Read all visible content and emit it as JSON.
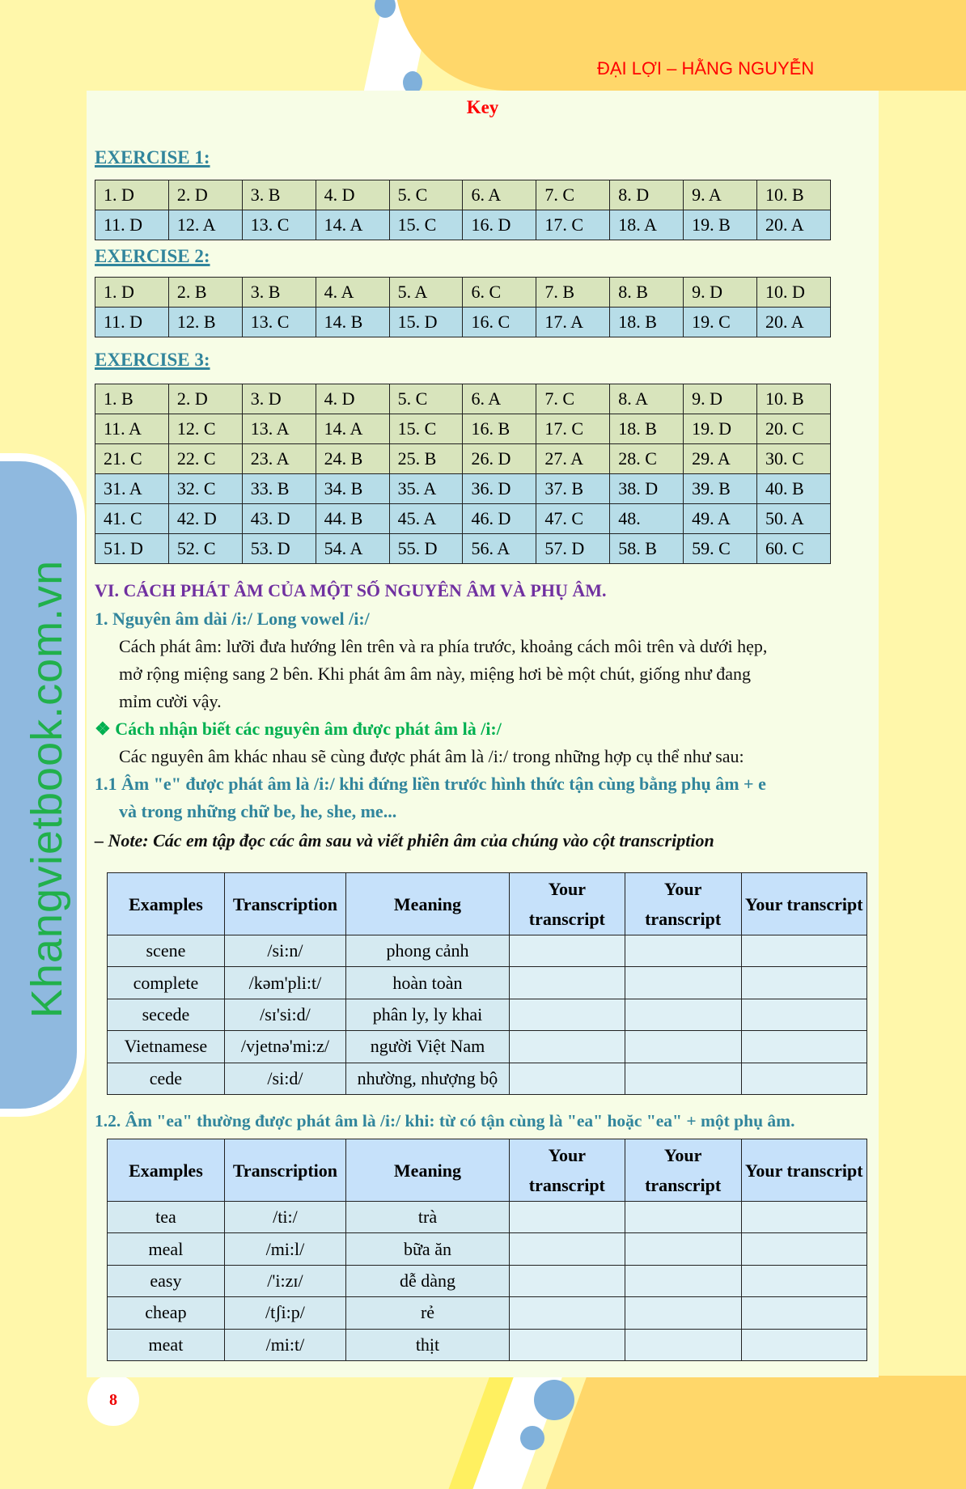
{
  "header": {
    "author": "ĐẠI LỢI – HẰNG NGUYỄN"
  },
  "watermark": "Khangvietbook.com.vn",
  "page_number": "8",
  "key_title": "Key",
  "exercises": [
    {
      "label": "EXERCISE 1:",
      "rows": [
        [
          "1. D",
          "2. D",
          "3. B",
          "4. D",
          "5. C",
          "6. A",
          "7. C",
          "8. D",
          "9. A",
          "10. B"
        ],
        [
          "11. D",
          "12. A",
          "13. C",
          "14. A",
          "15. C",
          "16. D",
          "17. C",
          "18. A",
          "19. B",
          "20. A"
        ]
      ],
      "row_colors": [
        "green",
        "blue"
      ]
    },
    {
      "label": "EXERCISE 2:",
      "rows": [
        [
          "1. D",
          "2. B",
          "3. B",
          "4. A",
          "5. A",
          "6. C",
          "7. B",
          "8. B",
          "9. D",
          "10. D"
        ],
        [
          "11. D",
          "12. B",
          "13. C",
          "14. B",
          "15. D",
          "16. C",
          "17. A",
          "18. B",
          "19. C",
          "20. A"
        ]
      ],
      "row_colors": [
        "green",
        "blue"
      ]
    },
    {
      "label": "EXERCISE 3:",
      "rows": [
        [
          "1. B",
          "2. D",
          "3. D",
          "4. D",
          "5. C",
          "6. A",
          "7. C",
          "8. A",
          "9. D",
          "10. B"
        ],
        [
          "11. A",
          "12. C",
          "13. A",
          "14. A",
          "15. C",
          "16. B",
          "17. C",
          "18. B",
          "19. D",
          "20. C"
        ],
        [
          "21. C",
          "22. C",
          "23. A",
          "24. B",
          "25. B",
          "26. D",
          "27. A",
          "28. C",
          "29. A",
          "30. C"
        ],
        [
          "31. A",
          "32. C",
          "33. B",
          "34. B",
          "35. A",
          "36. D",
          "37. B",
          "38. D",
          "39. B",
          "40. B"
        ],
        [
          "41. C",
          "42. D",
          "43. D",
          "44. B",
          "45. A",
          "46. D",
          "47. C",
          "48.",
          "49. A",
          "50. A"
        ],
        [
          "51. D",
          "52. C",
          "53. D",
          "54. A",
          "55. D",
          "56. A",
          "57. D",
          "58. B",
          "59. C",
          "60. C"
        ]
      ],
      "row_colors": [
        "green",
        "green",
        "green",
        "blue",
        "blue",
        "blue"
      ]
    }
  ],
  "section": {
    "heading": "VI. CÁCH PHÁT ÂM CỦA MỘT SỐ NGUYÊN ÂM VÀ PHỤ ÂM.",
    "sub1": "1. Nguyên âm dài /i:/ Long vowel /i:/",
    "para_lines": [
      "Cách phát âm: lưỡi đưa hướng lên trên và ra phía trước, khoảng cách môi trên và dưới hẹp,",
      "mở rộng miệng sang 2 bên. Khi phát âm âm này, miệng hơi bè một chút, giống như đang",
      "mỉm cười vậy."
    ],
    "bullet_heading": "❖ Cách nhận biết các nguyên âm được phát âm là /i:/",
    "bullet_text": "Các nguyên âm khác nhau sẽ cùng được phát âm là /i:/ trong những hợp cụ thể như sau:",
    "rule11_lines": [
      "1.1 Âm \"e\" được phát âm là /i:/ khi đứng liền trước hình thức tận cùng bằng phụ âm + e",
      "và trong những chữ be, he, she, me..."
    ],
    "note": "–  Note: Các em tập đọc các âm sau và viết phiên âm của chúng vào cột transcription",
    "rule12": "1.2. Âm \"ea\" thường được phát âm là /i:/ khi: từ có tận cùng là \"ea\" hoặc \"ea\" + một phụ âm."
  },
  "vocab_headers": [
    "Examples",
    "Transcription",
    "Meaning",
    "Your transcript",
    "Your transcript",
    "Your transcript"
  ],
  "vocab_tables": [
    [
      [
        "scene",
        "/si:n/",
        "phong cảnh"
      ],
      [
        "complete",
        "/kəm'pli:t/",
        "hoàn toàn"
      ],
      [
        "secede",
        "/sɪ'si:d/",
        "phân ly, ly khai"
      ],
      [
        "Vietnamese",
        "/vjetnə'mi:z/",
        "người Việt Nam"
      ],
      [
        "cede",
        "/si:d/",
        "nhường, nhượng bộ"
      ]
    ],
    [
      [
        "tea",
        "/ti:/",
        "trà"
      ],
      [
        "meal",
        "/mi:l/",
        "bữa ăn"
      ],
      [
        "easy",
        "/'i:zɪ/",
        "dễ dàng"
      ],
      [
        "cheap",
        "/tʃi:p/",
        "rẻ"
      ],
      [
        "meat",
        "/mi:t/",
        "thịt"
      ]
    ]
  ],
  "colors": {
    "teal": "#31859c",
    "purple": "#7030a0",
    "green": "#00b050",
    "red": "#ff0000",
    "row_green": "#d8e4bc",
    "row_blue": "#b7dde8"
  }
}
